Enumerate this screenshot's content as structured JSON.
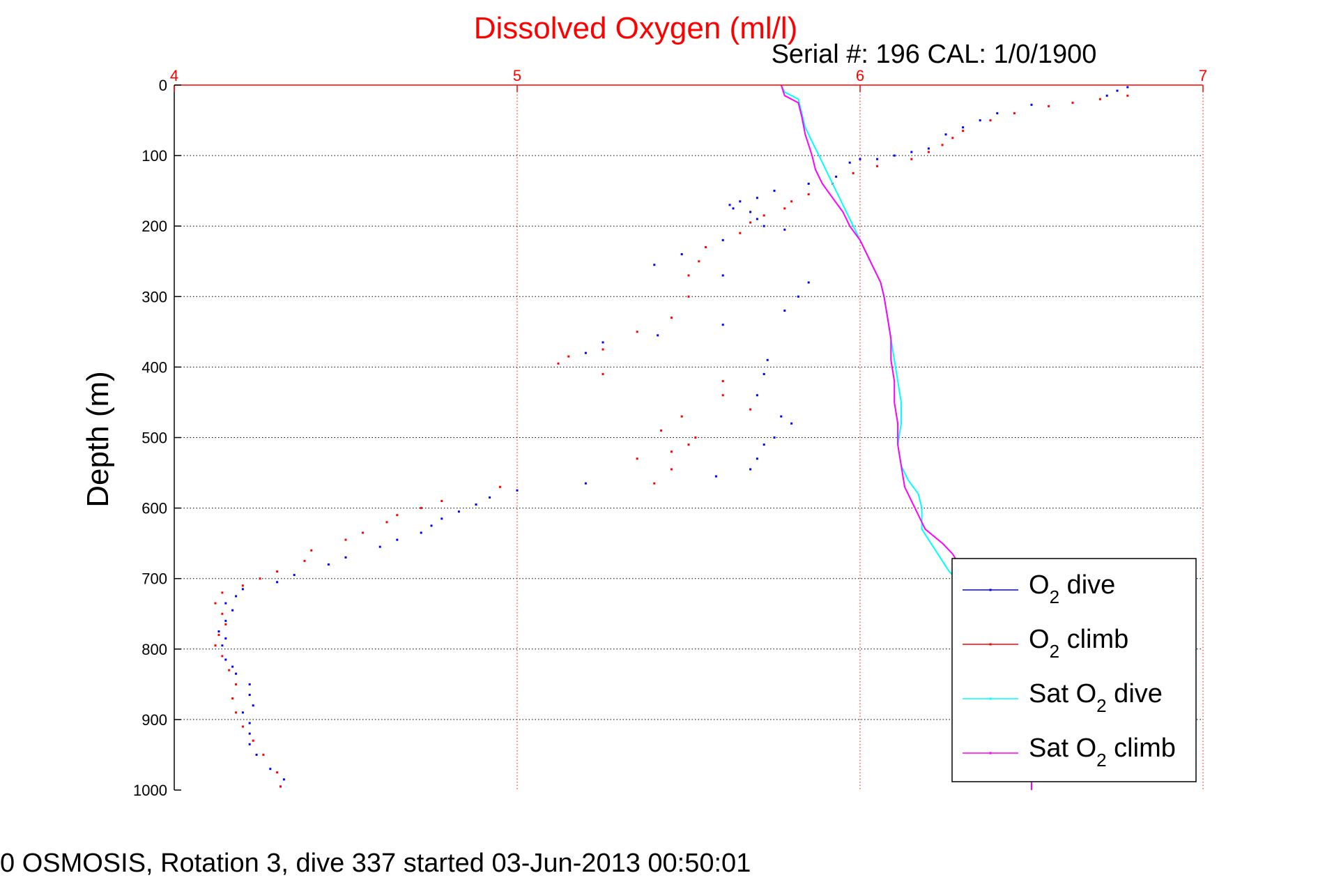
{
  "chart_data": {
    "type": "scatter",
    "title": "Dissolved Oxygen (ml/l)",
    "subtitle": "Serial #: 196  CAL: 1/0/1900",
    "xlabel": "",
    "ylabel": "Depth (m)",
    "xlim": [
      4,
      7
    ],
    "ylim": [
      0,
      1000
    ],
    "y_inverted": true,
    "x_axis_position": "top",
    "xticks": [
      4,
      5,
      6,
      7
    ],
    "yticks": [
      0,
      100,
      200,
      300,
      400,
      500,
      600,
      700,
      800,
      900,
      1000
    ],
    "grid": true,
    "legend_position": "bottom-right",
    "footer": "0 OSMOSIS, Rotation 3, dive 337 started 03-Jun-2013 00:50:01",
    "colors": {
      "title": "#ff0000",
      "x_axis": "#ff0000",
      "o2_dive": "#0000ff",
      "o2_climb": "#ff0000",
      "sat_dive": "#00ffff",
      "sat_climb": "#ff00ff"
    },
    "series": [
      {
        "name": "O2 dive",
        "legend_main": "O",
        "legend_sub": "2",
        "legend_rest": " dive",
        "color": "#0000ff",
        "style": "points",
        "points": [
          [
            6.78,
            3
          ],
          [
            6.75,
            8
          ],
          [
            6.72,
            15
          ],
          [
            6.5,
            28
          ],
          [
            6.4,
            40
          ],
          [
            6.35,
            50
          ],
          [
            6.3,
            60
          ],
          [
            6.25,
            70
          ],
          [
            6.2,
            90
          ],
          [
            6.15,
            95
          ],
          [
            6.1,
            100
          ],
          [
            6.05,
            105
          ],
          [
            6.0,
            105
          ],
          [
            5.97,
            110
          ],
          [
            5.93,
            130
          ],
          [
            5.85,
            140
          ],
          [
            5.75,
            150
          ],
          [
            5.7,
            160
          ],
          [
            5.65,
            165
          ],
          [
            5.62,
            170
          ],
          [
            5.63,
            175
          ],
          [
            5.68,
            180
          ],
          [
            5.7,
            190
          ],
          [
            5.72,
            200
          ],
          [
            5.78,
            205
          ],
          [
            5.6,
            220
          ],
          [
            5.48,
            240
          ],
          [
            5.4,
            255
          ],
          [
            5.6,
            270
          ],
          [
            5.85,
            280
          ],
          [
            5.82,
            300
          ],
          [
            5.78,
            320
          ],
          [
            5.6,
            340
          ],
          [
            5.41,
            355
          ],
          [
            5.25,
            365
          ],
          [
            5.2,
            380
          ],
          [
            5.73,
            390
          ],
          [
            5.72,
            410
          ],
          [
            5.7,
            440
          ],
          [
            5.77,
            470
          ],
          [
            5.8,
            480
          ],
          [
            5.75,
            500
          ],
          [
            5.72,
            510
          ],
          [
            5.7,
            530
          ],
          [
            5.68,
            545
          ],
          [
            5.58,
            555
          ],
          [
            5.2,
            565
          ],
          [
            5.0,
            575
          ],
          [
            4.92,
            585
          ],
          [
            4.88,
            595
          ],
          [
            4.83,
            605
          ],
          [
            4.78,
            615
          ],
          [
            4.75,
            625
          ],
          [
            4.72,
            635
          ],
          [
            4.65,
            645
          ],
          [
            4.6,
            655
          ],
          [
            4.5,
            670
          ],
          [
            4.45,
            680
          ],
          [
            4.35,
            695
          ],
          [
            4.3,
            705
          ],
          [
            4.2,
            715
          ],
          [
            4.18,
            725
          ],
          [
            4.15,
            735
          ],
          [
            4.17,
            745
          ],
          [
            4.15,
            760
          ],
          [
            4.13,
            775
          ],
          [
            4.15,
            785
          ],
          [
            4.14,
            795
          ],
          [
            4.15,
            815
          ],
          [
            4.17,
            825
          ],
          [
            4.18,
            835
          ],
          [
            4.22,
            850
          ],
          [
            4.22,
            865
          ],
          [
            4.23,
            880
          ],
          [
            4.2,
            890
          ],
          [
            4.22,
            905
          ],
          [
            4.22,
            920
          ],
          [
            4.22,
            935
          ],
          [
            4.24,
            950
          ],
          [
            4.28,
            970
          ],
          [
            4.32,
            985
          ],
          [
            4.31,
            995
          ]
        ]
      },
      {
        "name": "O2 climb",
        "legend_main": "O",
        "legend_sub": "2",
        "legend_rest": " climb",
        "color": "#ff0000",
        "style": "points",
        "points": [
          [
            6.78,
            15
          ],
          [
            6.7,
            20
          ],
          [
            6.62,
            25
          ],
          [
            6.55,
            30
          ],
          [
            6.45,
            40
          ],
          [
            6.38,
            50
          ],
          [
            6.3,
            65
          ],
          [
            6.27,
            75
          ],
          [
            6.24,
            85
          ],
          [
            6.2,
            95
          ],
          [
            6.15,
            105
          ],
          [
            6.05,
            115
          ],
          [
            5.98,
            125
          ],
          [
            5.92,
            140
          ],
          [
            5.85,
            155
          ],
          [
            5.8,
            165
          ],
          [
            5.78,
            175
          ],
          [
            5.72,
            185
          ],
          [
            5.68,
            195
          ],
          [
            5.65,
            210
          ],
          [
            5.55,
            230
          ],
          [
            5.53,
            250
          ],
          [
            5.5,
            270
          ],
          [
            5.5,
            300
          ],
          [
            5.45,
            330
          ],
          [
            5.35,
            350
          ],
          [
            5.25,
            375
          ],
          [
            5.15,
            385
          ],
          [
            5.12,
            395
          ],
          [
            5.25,
            410
          ],
          [
            5.6,
            420
          ],
          [
            5.6,
            440
          ],
          [
            5.68,
            460
          ],
          [
            5.48,
            470
          ],
          [
            5.42,
            490
          ],
          [
            5.52,
            500
          ],
          [
            5.5,
            510
          ],
          [
            5.45,
            520
          ],
          [
            5.35,
            530
          ],
          [
            5.45,
            545
          ],
          [
            5.4,
            565
          ],
          [
            4.95,
            570
          ],
          [
            4.78,
            590
          ],
          [
            4.72,
            600
          ],
          [
            4.65,
            610
          ],
          [
            4.62,
            620
          ],
          [
            4.55,
            635
          ],
          [
            4.5,
            645
          ],
          [
            4.4,
            660
          ],
          [
            4.38,
            675
          ],
          [
            4.3,
            690
          ],
          [
            4.25,
            700
          ],
          [
            4.2,
            710
          ],
          [
            4.14,
            720
          ],
          [
            4.12,
            735
          ],
          [
            4.14,
            750
          ],
          [
            4.15,
            765
          ],
          [
            4.13,
            780
          ],
          [
            4.12,
            795
          ],
          [
            4.14,
            810
          ],
          [
            4.16,
            830
          ],
          [
            4.18,
            850
          ],
          [
            4.17,
            870
          ],
          [
            4.18,
            890
          ],
          [
            4.2,
            910
          ],
          [
            4.23,
            930
          ],
          [
            4.26,
            950
          ],
          [
            4.3,
            975
          ],
          [
            4.31,
            995
          ]
        ]
      },
      {
        "name": "Sat O2 dive",
        "legend_main": "Sat O",
        "legend_sub": "2",
        "legend_rest": " dive",
        "color": "#00ffff",
        "style": "line",
        "points": [
          [
            5.77,
            0
          ],
          [
            5.78,
            10
          ],
          [
            5.82,
            20
          ],
          [
            5.83,
            40
          ],
          [
            5.84,
            60
          ],
          [
            5.86,
            80
          ],
          [
            5.88,
            100
          ],
          [
            5.9,
            120
          ],
          [
            5.92,
            140
          ],
          [
            5.94,
            160
          ],
          [
            5.96,
            180
          ],
          [
            5.98,
            200
          ],
          [
            6.0,
            220
          ],
          [
            6.02,
            240
          ],
          [
            6.04,
            260
          ],
          [
            6.06,
            280
          ],
          [
            6.07,
            300
          ],
          [
            6.08,
            330
          ],
          [
            6.09,
            360
          ],
          [
            6.1,
            390
          ],
          [
            6.11,
            420
          ],
          [
            6.12,
            450
          ],
          [
            6.12,
            480
          ],
          [
            6.11,
            510
          ],
          [
            6.12,
            540
          ],
          [
            6.14,
            560
          ],
          [
            6.17,
            580
          ],
          [
            6.18,
            600
          ],
          [
            6.18,
            630
          ],
          [
            6.22,
            660
          ],
          [
            6.26,
            690
          ],
          [
            6.3,
            710
          ]
        ]
      },
      {
        "name": "Sat O2 climb",
        "legend_main": "Sat O",
        "legend_sub": "2",
        "legend_rest": " climb",
        "color": "#ff00ff",
        "style": "line",
        "points": [
          [
            5.77,
            0
          ],
          [
            5.78,
            15
          ],
          [
            5.82,
            25
          ],
          [
            5.83,
            45
          ],
          [
            5.84,
            70
          ],
          [
            5.86,
            100
          ],
          [
            5.87,
            120
          ],
          [
            5.89,
            140
          ],
          [
            5.92,
            160
          ],
          [
            5.95,
            180
          ],
          [
            5.97,
            200
          ],
          [
            6.0,
            220
          ],
          [
            6.02,
            240
          ],
          [
            6.04,
            260
          ],
          [
            6.06,
            280
          ],
          [
            6.07,
            300
          ],
          [
            6.08,
            330
          ],
          [
            6.09,
            360
          ],
          [
            6.09,
            390
          ],
          [
            6.1,
            420
          ],
          [
            6.1,
            450
          ],
          [
            6.11,
            480
          ],
          [
            6.11,
            510
          ],
          [
            6.12,
            540
          ],
          [
            6.13,
            570
          ],
          [
            6.16,
            600
          ],
          [
            6.19,
            630
          ],
          [
            6.24,
            650
          ],
          [
            6.27,
            665
          ],
          [
            6.3,
            690
          ],
          [
            6.36,
            720
          ],
          [
            6.43,
            760
          ],
          [
            6.49,
            800
          ],
          [
            6.5,
            840
          ],
          [
            6.5,
            880
          ],
          [
            6.5,
            920
          ],
          [
            6.5,
            960
          ],
          [
            6.5,
            1000
          ]
        ]
      }
    ]
  }
}
